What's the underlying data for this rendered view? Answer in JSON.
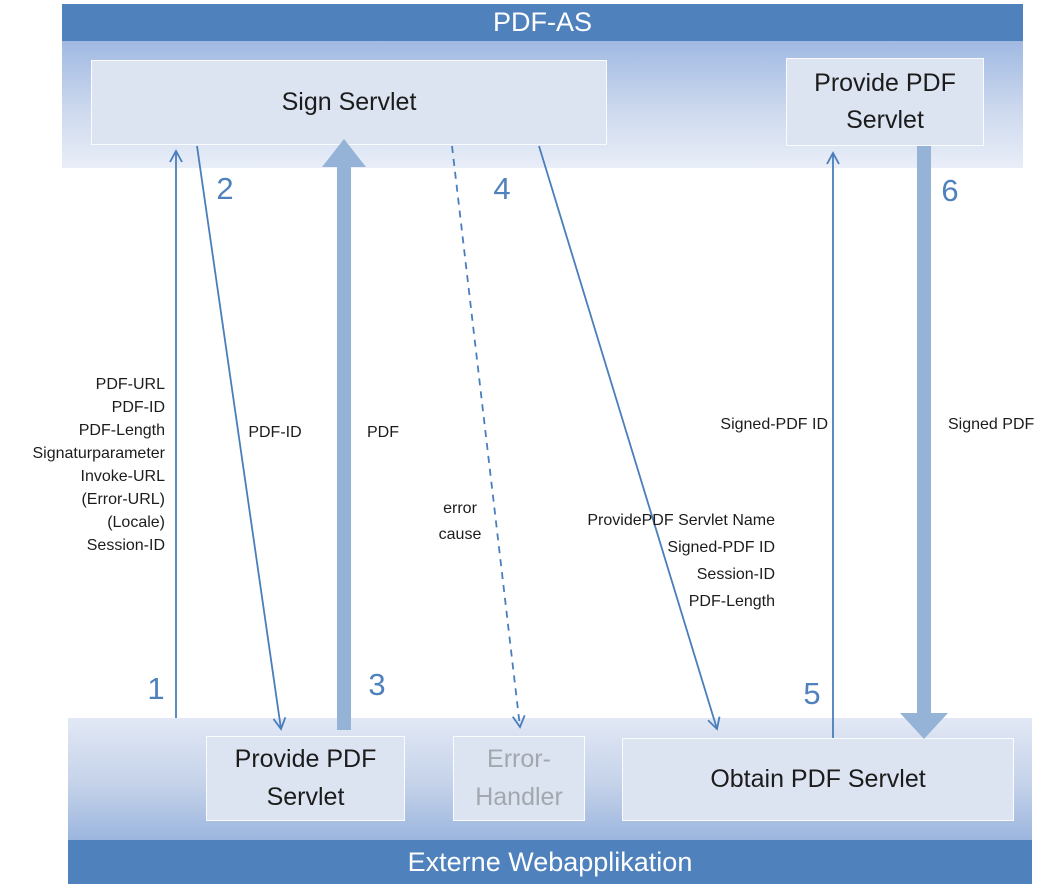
{
  "colors": {
    "bar_blue": "#4f81bd",
    "arrow_blue": "#4a7ebb",
    "thick_arrow_blue": "#95b3d7",
    "box_fill": "#dce4f1",
    "number_blue": "#4f81bd",
    "muted_text": "#a3a8ae",
    "label_text": "#1c1c1c",
    "band_top_start": "#a0b9e2",
    "band_top_end": "#e9eef8",
    "band_bottom_start": "#e2e8f5",
    "band_bottom_end": "#9cb6df"
  },
  "pdf_as_layer": {
    "title": "PDF-AS",
    "sign_servlet_label": "Sign Servlet",
    "provide_pdf_servlet_label": "Provide PDF Servlet"
  },
  "webapp_layer": {
    "title": "Externe Webapplikation",
    "provide_pdf_servlet_label": "Provide PDF Servlet",
    "error_handler_label": "Error-Handler",
    "obtain_pdf_servlet_label": "Obtain PDF Servlet"
  },
  "arrows": {
    "s1": {
      "number": "1",
      "params": [
        "PDF-URL",
        "PDF-ID",
        "PDF-Length",
        "Signaturparameter",
        "Invoke-URL",
        "(Error-URL)",
        "(Locale)",
        "Session-ID"
      ]
    },
    "s2": {
      "number": "2",
      "label": "PDF-ID"
    },
    "s3": {
      "number": "3",
      "label": "PDF"
    },
    "s4": {
      "number": "4",
      "label_lines": [
        "error",
        "cause"
      ]
    },
    "s5": {
      "number": "5",
      "request_params": [
        "ProvidePDF Servlet Name",
        "Signed-PDF ID",
        "Session-ID",
        "PDF-Length"
      ],
      "response_label": "Signed-PDF ID"
    },
    "s6": {
      "number": "6",
      "label": "Signed PDF"
    }
  }
}
